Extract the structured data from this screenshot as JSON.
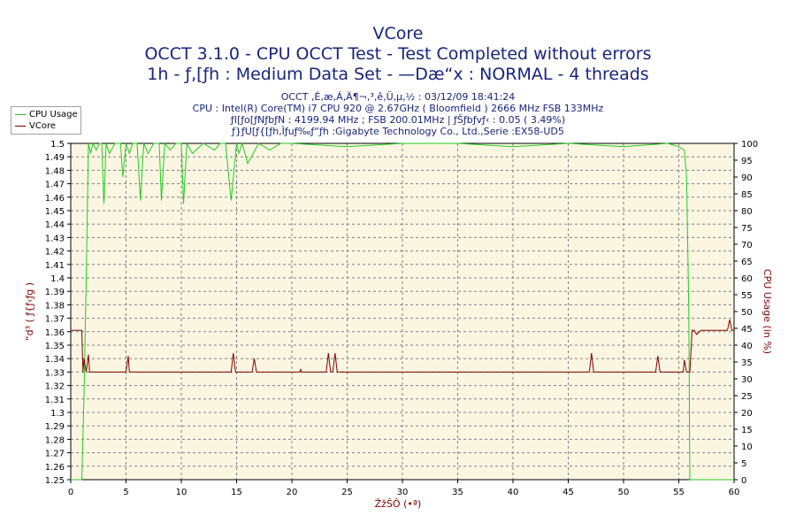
{
  "header": {
    "title": "VCore",
    "subtitle": "OCCT 3.1.0 - CPU OCCT Test - Test Completed without errors",
    "subtitle2": "1h - ƒ‚[ƒh : Medium Data Set - —Dæ“x : NORMAL - 4 threads",
    "info_lines": [
      "OCCT ‚É‚æ‚Á‚Ä¶¬‚³‚ê‚Ü‚µ‚½ : 03/12/09 18:41:24",
      "CPU : Intel(R) Core(TM) i7 CPU 920 @ 2.67GHz ( Bloomfield ) 2666 MHz FSB 133MHz",
      "ƒI[ƒo[ƒNƒbƒN : 4199.94 MHz ; FSB 200.01MHz | ƒŠƒbƒvƒ‹ : 0.05 ( 3.49%)",
      "ƒ}ƒU[ƒ{[ƒh‚Ìƒuƒ‰ƒ“ƒh :Gigabyte Technology Co., Ltd.,Serie :EX58-UD5"
    ]
  },
  "legend": {
    "items": [
      {
        "label": "CPU Usage",
        "color": "#22cc22"
      },
      {
        "label": "VCore",
        "color": "#800000"
      }
    ]
  },
  "chart_data": {
    "type": "line",
    "title": "VCore",
    "xlabel": "ŽžŠÔ (•ª)",
    "ylabel": "“d³ ( ƒ{ƒ‹ƒg )",
    "y2label": "CPU Usage (in %)",
    "xlim": [
      0,
      60
    ],
    "ylim": [
      1.25,
      1.5
    ],
    "y2lim": [
      0,
      100
    ],
    "x_ticks": [
      0,
      5,
      10,
      15,
      20,
      25,
      30,
      35,
      40,
      45,
      50,
      55,
      60
    ],
    "y_ticks": [
      1.25,
      1.26,
      1.27,
      1.28,
      1.29,
      1.3,
      1.31,
      1.32,
      1.33,
      1.34,
      1.35,
      1.36,
      1.37,
      1.38,
      1.39,
      1.4,
      1.41,
      1.42,
      1.43,
      1.44,
      1.45,
      1.46,
      1.47,
      1.48,
      1.49,
      1.5
    ],
    "y2_ticks": [
      0,
      5,
      10,
      15,
      20,
      25,
      30,
      35,
      40,
      45,
      50,
      55,
      60,
      65,
      70,
      75,
      80,
      85,
      90,
      95,
      100
    ],
    "grid": true,
    "legend_position": "top-left",
    "colors": {
      "plot_bg": "#fbf6e2",
      "grid": "#808080",
      "cpu": "#22cc22",
      "vcore": "#800000",
      "axis_text": "#000000",
      "axis_title": "#800000"
    },
    "series": [
      {
        "name": "CPU Usage",
        "axis": "right",
        "x": [
          0,
          1.0,
          1.2,
          1.4,
          1.6,
          1.8,
          2.0,
          2.3,
          2.6,
          2.8,
          3.0,
          3.2,
          3.5,
          4.0,
          4.5,
          4.7,
          5.0,
          5.3,
          5.6,
          6.0,
          6.3,
          6.6,
          7.0,
          7.5,
          8.0,
          8.2,
          8.5,
          9.0,
          9.5,
          10.0,
          10.2,
          10.5,
          11.0,
          12.0,
          13.0,
          13.5,
          14.0,
          14.5,
          15.0,
          15.2,
          15.5,
          16.0,
          17.0,
          18.0,
          19.0,
          20.0,
          25.0,
          30.0,
          35.0,
          40.0,
          45.0,
          50.0,
          54.0,
          55.0,
          55.5,
          55.7,
          55.9,
          56.0,
          56.2,
          57.0,
          60.0
        ],
        "values": [
          0,
          0,
          25,
          60,
          100,
          97,
          100,
          98,
          100,
          100,
          82,
          100,
          97,
          100,
          100,
          90,
          100,
          97,
          100,
          100,
          83,
          100,
          97,
          100,
          100,
          83,
          100,
          98,
          100,
          100,
          82,
          100,
          97,
          100,
          98,
          100,
          100,
          83,
          100,
          97,
          100,
          94,
          100,
          98,
          100,
          100,
          99,
          100,
          100,
          99,
          100,
          99,
          100,
          99,
          98,
          90,
          50,
          0,
          0,
          0,
          0
        ]
      },
      {
        "name": "VCore",
        "axis": "left",
        "x": [
          0,
          1.0,
          1.1,
          1.2,
          1.4,
          1.6,
          1.7,
          1.8,
          2.0,
          5.0,
          5.2,
          5.3,
          5.5,
          14.5,
          14.7,
          14.9,
          15.0,
          16.4,
          16.6,
          16.8,
          17.0,
          20.7,
          20.8,
          20.9,
          23.1,
          23.3,
          23.5,
          23.7,
          23.9,
          24.1,
          24.3,
          46.9,
          47.1,
          47.3,
          47.5,
          52.9,
          53.1,
          53.3,
          53.5,
          55.4,
          55.5,
          55.7,
          55.8,
          56.0,
          56.2,
          56.4,
          56.6,
          57.0,
          58.0,
          59.4,
          59.6,
          59.8,
          60.0
        ],
        "values": [
          1.361,
          1.361,
          1.33,
          1.34,
          1.33,
          1.343,
          1.33,
          1.33,
          1.33,
          1.33,
          1.342,
          1.33,
          1.33,
          1.33,
          1.344,
          1.33,
          1.33,
          1.33,
          1.34,
          1.33,
          1.33,
          1.33,
          1.332,
          1.33,
          1.33,
          1.344,
          1.33,
          1.33,
          1.344,
          1.33,
          1.33,
          1.33,
          1.344,
          1.33,
          1.33,
          1.33,
          1.342,
          1.33,
          1.33,
          1.33,
          1.339,
          1.33,
          1.33,
          1.33,
          1.361,
          1.361,
          1.358,
          1.361,
          1.361,
          1.361,
          1.369,
          1.361,
          1.361
        ]
      }
    ]
  }
}
